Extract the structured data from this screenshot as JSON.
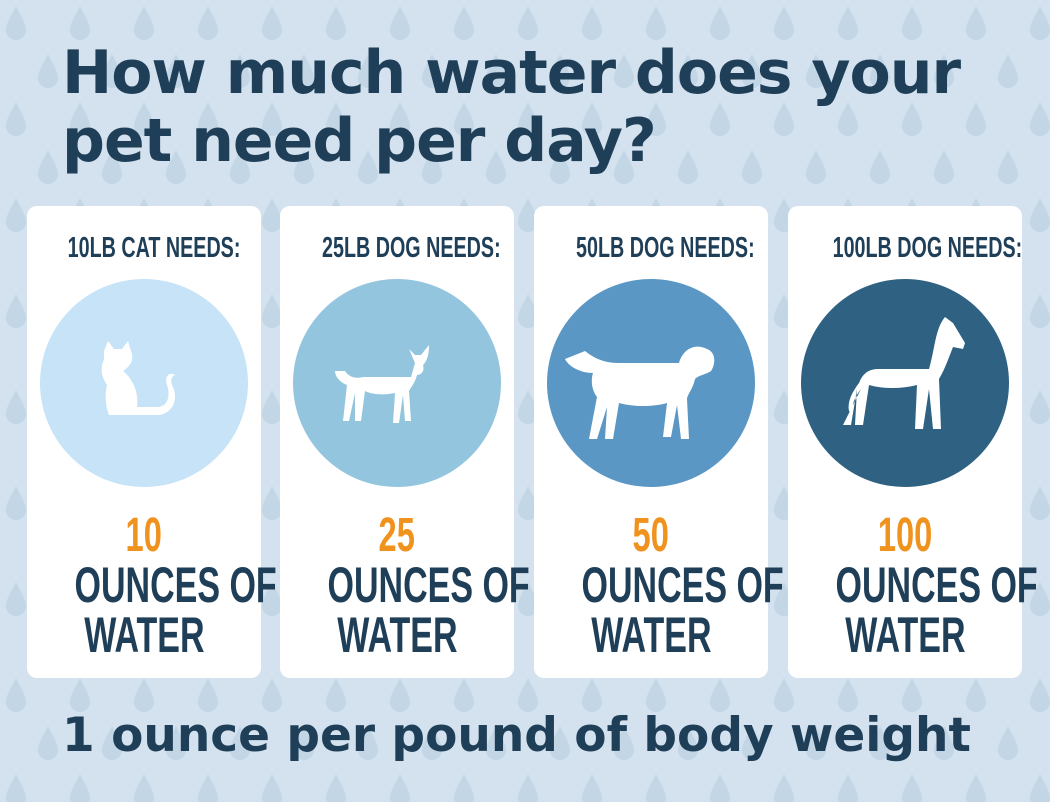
{
  "header": {
    "title_lines": [
      "How much water does your",
      "pet need per day?"
    ]
  },
  "cards": [
    {
      "label": "10LB CAT NEEDS:",
      "amount": "10",
      "unit_lines": [
        "OUNCES OF",
        "WATER"
      ]
    },
    {
      "label": "25LB DOG NEEDS:",
      "amount": "25",
      "unit_lines": [
        "OUNCES OF",
        "WATER"
      ]
    },
    {
      "label": "50LB DOG NEEDS:",
      "amount": "50",
      "unit_lines": [
        "OUNCES OF",
        "WATER"
      ]
    },
    {
      "label": "100LB DOG NEEDS:",
      "amount": "100",
      "unit_lines": [
        "OUNCES OF",
        "WATER"
      ]
    }
  ],
  "footer": {
    "text": "1 ounce per pound of body weight"
  }
}
